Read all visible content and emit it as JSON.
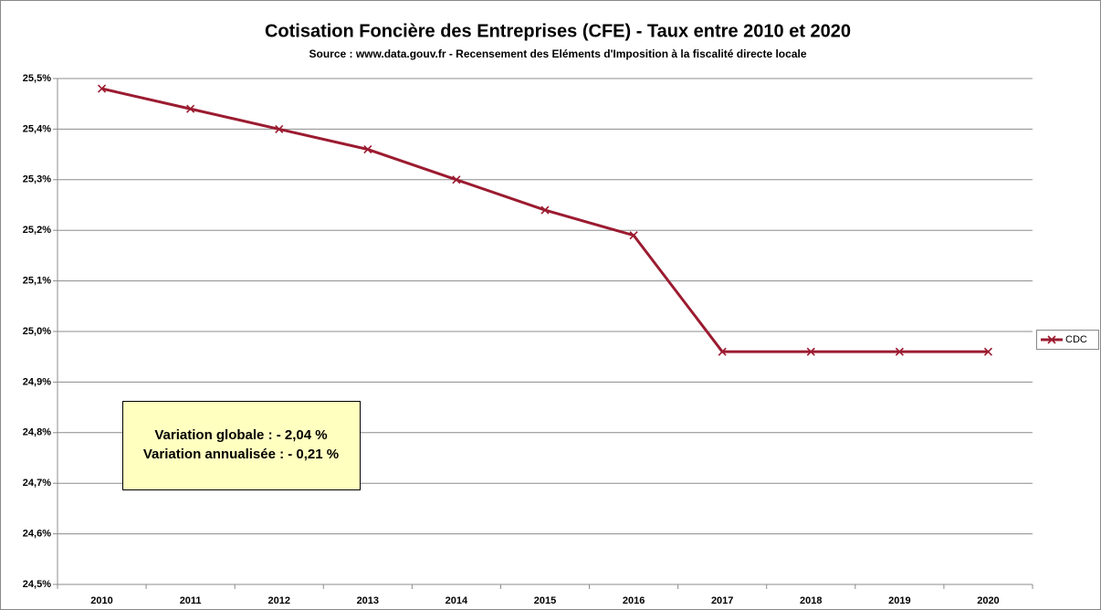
{
  "chart_data": {
    "type": "line",
    "title": "Cotisation Foncière des Entreprises (CFE) - Taux entre 2010 et 2020",
    "subtitle": "Source : www.data.gouv.fr - Recensement des Eléments d'Imposition à la fiscalité directe locale",
    "categories": [
      "2010",
      "2011",
      "2012",
      "2013",
      "2014",
      "2015",
      "2016",
      "2017",
      "2018",
      "2019",
      "2020"
    ],
    "series": [
      {
        "name": "CDC",
        "color": "#9b1b30",
        "values": [
          25.48,
          25.44,
          25.4,
          25.36,
          25.3,
          25.24,
          25.19,
          24.96,
          24.96,
          24.96,
          24.96
        ]
      }
    ],
    "ylim": [
      24.5,
      25.5
    ],
    "yticks": [
      {
        "value": 24.5,
        "label": "24,5%"
      },
      {
        "value": 24.6,
        "label": "24,6%"
      },
      {
        "value": 24.7,
        "label": "24,7%"
      },
      {
        "value": 24.8,
        "label": "24,8%"
      },
      {
        "value": 24.9,
        "label": "24,9%"
      },
      {
        "value": 25.0,
        "label": "25,0%"
      },
      {
        "value": 25.1,
        "label": "25,1%"
      },
      {
        "value": 25.2,
        "label": "25,2%"
      },
      {
        "value": 25.3,
        "label": "25,3%"
      },
      {
        "value": 25.4,
        "label": "25,4%"
      },
      {
        "value": 25.5,
        "label": "25,5%"
      }
    ],
    "grid": true,
    "legend": "right",
    "annotations": [
      "Variation globale : - 2,04 %",
      "Variation annualisée : - 0,21 %"
    ]
  }
}
